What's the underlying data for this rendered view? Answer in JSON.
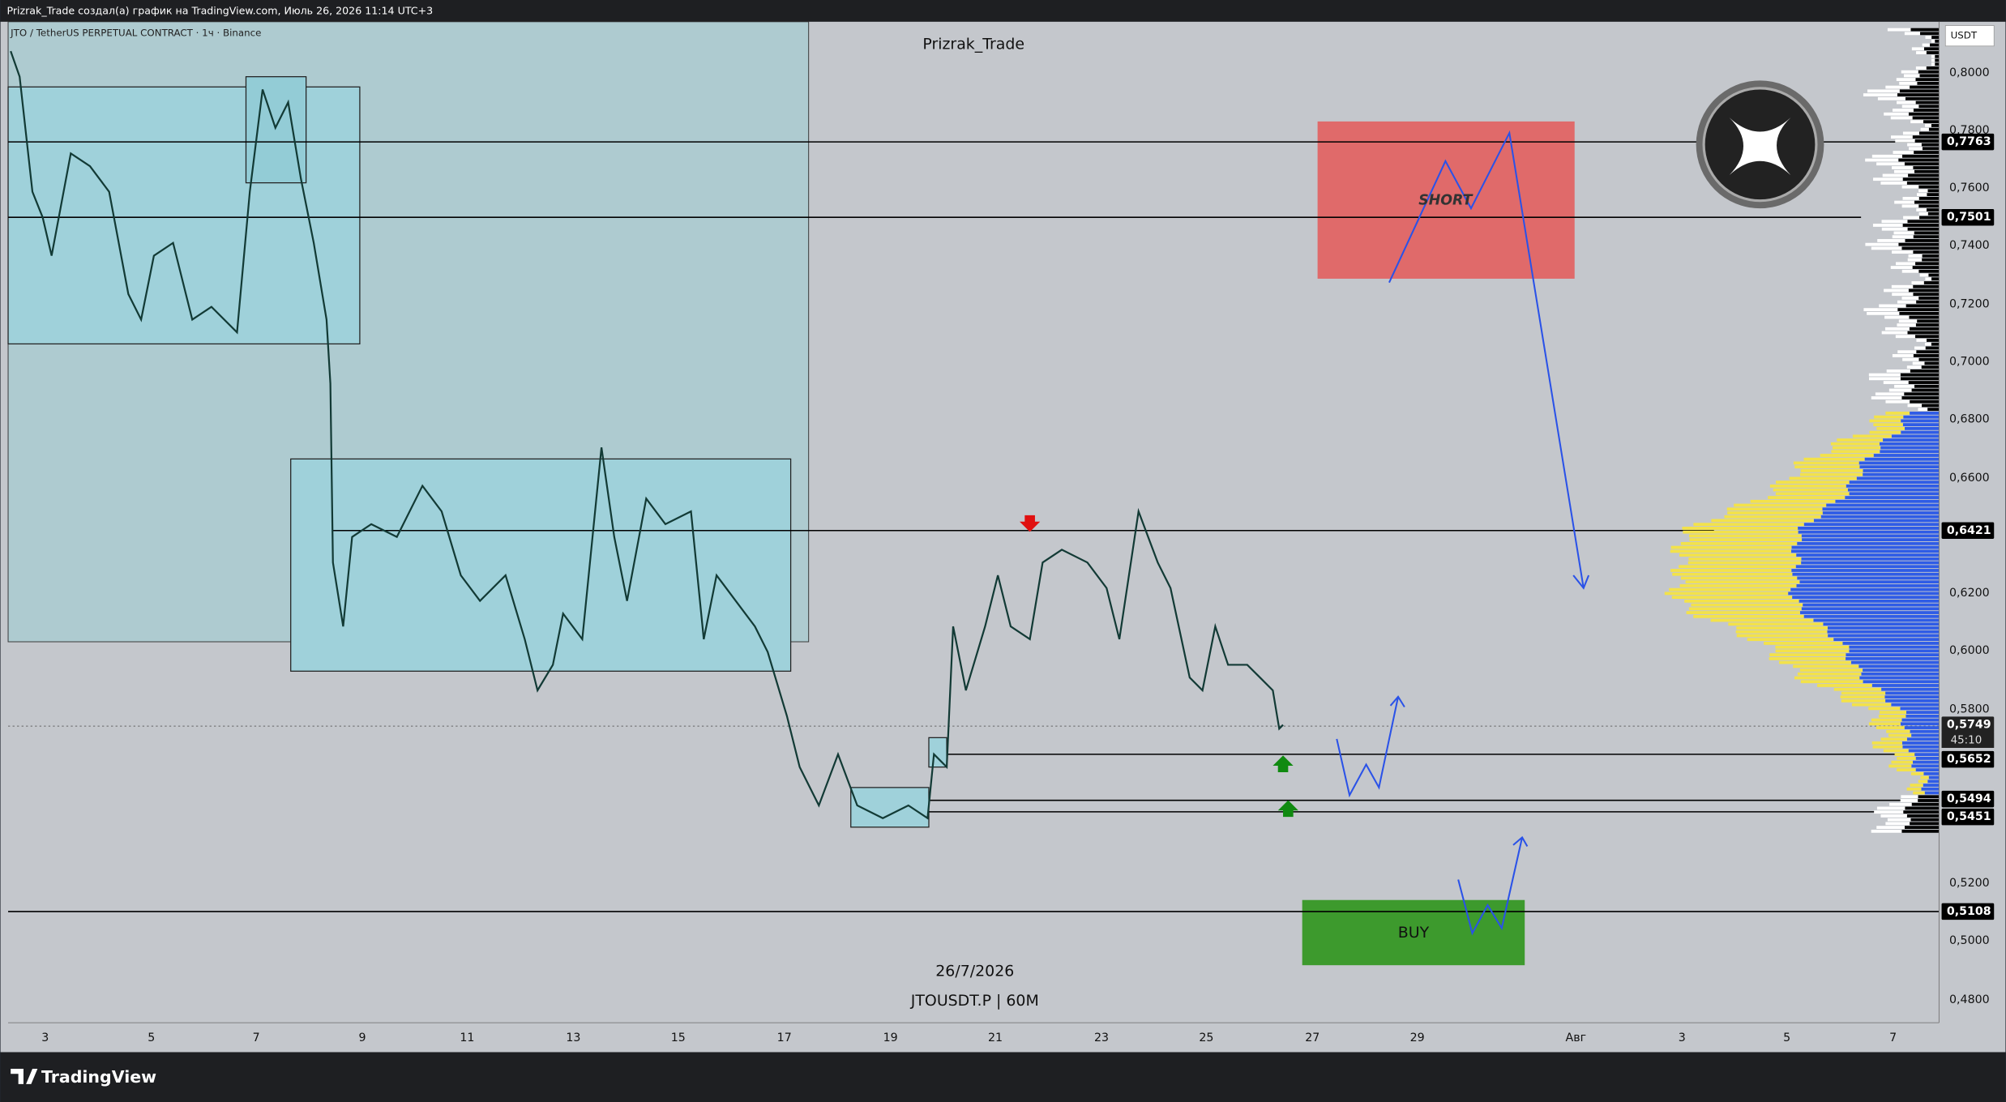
{
  "header": {
    "caption": "Prizrak_Trade создал(а) график на TradingView.com, Июль 26, 2026 11:14 UTC+3"
  },
  "chart": {
    "symbol_title": "JTO / TetherUS PERPETUAL CONTRACT · 1ч · Binance",
    "author": "Prizrak_Trade",
    "short_label": "SHORT",
    "buy_label": "BUY",
    "date_stamp": "26/7/2026",
    "ticker_stamp": "JTOUSDT.P | 60M"
  },
  "price_axis": {
    "currency": "USDT",
    "labels": [
      "0,8000",
      "0,7800",
      "0,7600",
      "0,7400",
      "0,7200",
      "0,7000",
      "0,6800",
      "0,6600",
      "0,6200",
      "0,6000",
      "0,5800",
      "0,5200",
      "0,5000",
      "0,4800"
    ],
    "levels": [
      "0,7763",
      "0,7501",
      "0,6421",
      "0,5749",
      "0,5652",
      "0,5494",
      "0,5451",
      "0,5108"
    ],
    "countdown": "45:10"
  },
  "time_axis": {
    "labels": [
      "3",
      "5",
      "7",
      "9",
      "11",
      "13",
      "15",
      "17",
      "19",
      "21",
      "23",
      "25",
      "27",
      "29",
      "Авг",
      "3",
      "5",
      "7"
    ]
  },
  "footer": {
    "brand": "TradingView"
  }
}
